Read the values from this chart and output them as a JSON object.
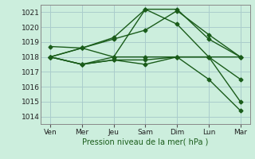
{
  "xlabel": "Pression niveau de la mer( hPa )",
  "background_color": "#cceedd",
  "grid_color": "#aacccc",
  "line_color": "#1a5c1a",
  "ylim": [
    1013.5,
    1021.5
  ],
  "yticks": [
    1014,
    1015,
    1016,
    1017,
    1018,
    1019,
    1020,
    1021
  ],
  "x_labels": [
    "Ven",
    "Mer",
    "Jeu",
    "Sam",
    "Dim",
    "Lun",
    "Mar"
  ],
  "x_positions": [
    0,
    1,
    2,
    3,
    4,
    5,
    6
  ],
  "series": [
    [
      1018.7,
      1018.6,
      1019.3,
      1021.2,
      1021.2,
      1019.2,
      1018.0
    ],
    [
      1018.0,
      1018.6,
      1019.2,
      1019.8,
      1021.1,
      1019.5,
      1018.0
    ],
    [
      1018.0,
      1018.6,
      1018.0,
      1021.2,
      1020.2,
      1018.0,
      1018.0
    ],
    [
      1018.0,
      1017.5,
      1018.0,
      1018.0,
      1018.0,
      1018.0,
      1016.5
    ],
    [
      1018.0,
      1017.5,
      1017.8,
      1017.8,
      1018.0,
      1016.5,
      1014.4
    ],
    [
      1018.0,
      1017.5,
      1017.8,
      1017.5,
      1018.0,
      1018.0,
      1015.0
    ]
  ],
  "marker": "D",
  "marker_size": 2.5,
  "linewidth": 1.0,
  "figsize": [
    3.2,
    2.0
  ],
  "dpi": 100,
  "xlabel_fontsize": 7,
  "tick_fontsize": 6.5
}
